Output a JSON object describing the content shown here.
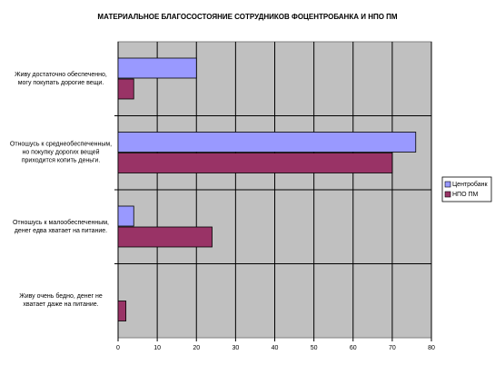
{
  "chart_data": {
    "type": "hbar",
    "title": "МАТЕРИАЛЬНОЕ БЛАГОСОСТОЯНИЕ СОТРУДНИКОВ ФОЦЕНТРОБАНКА И НПО ПМ",
    "categories": [
      "Живу достаточно обеспеченно, могу покупать дорогие вещи.",
      "Отношусь к среднеобеспеченным, но покупку дорогих вещей приходится копить деньги.",
      "Отношусь к малообеспеченным, денег едва хватает на питание.",
      "Живу очень бедно, денег не хватает даже на питание."
    ],
    "series": [
      {
        "name": "Центробанк",
        "color": "#9999ff",
        "values": [
          20,
          76,
          4,
          0
        ]
      },
      {
        "name": "НПО ПМ",
        "color": "#993366",
        "values": [
          4,
          70,
          24,
          2
        ]
      }
    ],
    "xlim": [
      0,
      80
    ],
    "xticks": [
      0,
      10,
      20,
      30,
      40,
      50,
      60,
      70,
      80
    ],
    "grid": true,
    "legend": "right"
  }
}
